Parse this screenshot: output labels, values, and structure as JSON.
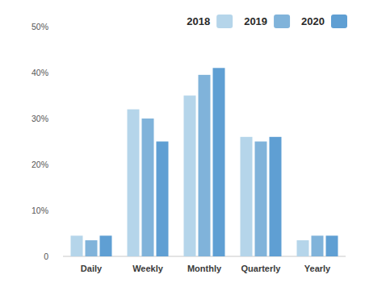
{
  "chart_data": {
    "type": "bar",
    "categories": [
      "Daily",
      "Weekly",
      "Monthly",
      "Quarterly",
      "Yearly"
    ],
    "series": [
      {
        "name": "2018",
        "color": "#b5d5ea",
        "values": [
          4.5,
          32,
          35,
          26,
          3.5
        ]
      },
      {
        "name": "2019",
        "color": "#80b3da",
        "values": [
          3.5,
          30,
          39.5,
          25,
          4.5
        ]
      },
      {
        "name": "2020",
        "color": "#5f9fd3",
        "values": [
          4.5,
          25,
          41,
          26,
          4.5
        ]
      }
    ],
    "ylim": [
      0,
      50
    ],
    "yticks": [
      0,
      {
        "value": 10,
        "label": "10%"
      },
      {
        "value": 20,
        "label": "20%"
      },
      {
        "value": 30,
        "label": "30%"
      },
      {
        "value": 40,
        "label": "40%"
      },
      {
        "value": 50,
        "label": "50%"
      }
    ],
    "grid": false,
    "legend": "top-right"
  }
}
